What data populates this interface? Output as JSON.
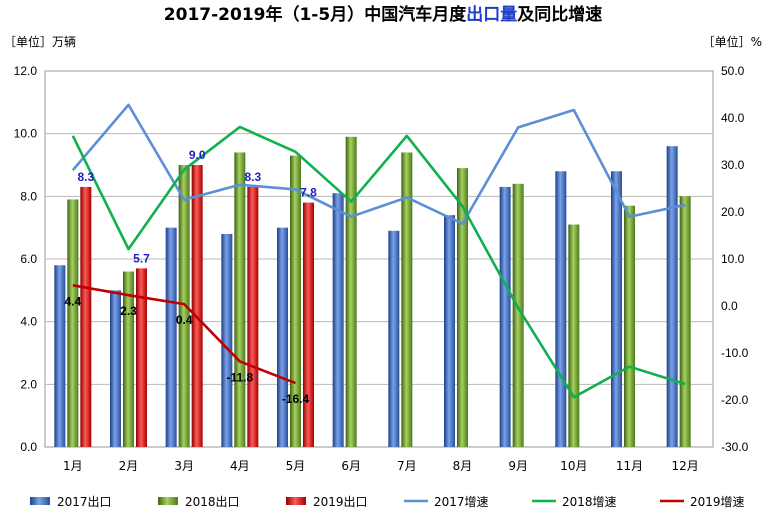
{
  "chart_data": {
    "type": "bar",
    "title": {
      "prefix": "2017-2019年（1-5月）中国汽车月度",
      "highlight": "出口量",
      "suffix": "及同比增速"
    },
    "left_unit": "［单位］万辆",
    "right_unit": "［单位］%",
    "categories": [
      "1月",
      "2月",
      "3月",
      "4月",
      "5月",
      "6月",
      "7月",
      "8月",
      "9月",
      "10月",
      "11月",
      "12月"
    ],
    "ylim_left": [
      0,
      12
    ],
    "ylim_right": [
      -30,
      50
    ],
    "left_ticks": [
      "0.0",
      "2.0",
      "4.0",
      "6.0",
      "8.0",
      "10.0",
      "12.0"
    ],
    "right_ticks": [
      "-30.0",
      "-20.0",
      "-10.0",
      "0.0",
      "10.0",
      "20.0",
      "30.0",
      "40.0",
      "50.0"
    ],
    "grid": true,
    "legend_position": "bottom",
    "bar_series": [
      {
        "name": "2017出口",
        "color": "#4472c4",
        "values": [
          5.8,
          5.0,
          7.0,
          6.8,
          7.0,
          8.1,
          6.9,
          7.4,
          8.3,
          8.8,
          8.8,
          9.6
        ]
      },
      {
        "name": "2018出口",
        "color": "#70a030",
        "values": [
          7.9,
          5.6,
          9.0,
          9.4,
          9.3,
          9.9,
          9.4,
          8.9,
          8.4,
          7.1,
          7.7,
          8.0
        ]
      },
      {
        "name": "2019出口",
        "color": "#e02020",
        "values": [
          8.3,
          5.7,
          9.0,
          8.3,
          7.8
        ]
      }
    ],
    "line_series": [
      {
        "name": "2017增速",
        "color": "#5b8fd6",
        "values": [
          28.9,
          42.8,
          22.6,
          25.8,
          24.8,
          19.0,
          23.1,
          17.5,
          38.0,
          41.7,
          19.0,
          21.5
        ]
      },
      {
        "name": "2018增速",
        "color": "#10b050",
        "values": [
          36.2,
          12.1,
          29.0,
          38.1,
          32.8,
          22.2,
          36.2,
          21.2,
          -0.4,
          -19.4,
          -12.9,
          -16.6
        ]
      },
      {
        "name": "2019增速",
        "color": "#c00000",
        "values": [
          4.4,
          2.3,
          0.4,
          -11.8,
          -16.4
        ]
      }
    ],
    "data_labels_2019_export": [
      "8.3",
      "5.7",
      "9.0",
      "8.3",
      "7.8"
    ],
    "data_labels_2019_growth": [
      "4.4",
      "2.3",
      "0.4",
      "-11.8",
      "-16.4"
    ]
  }
}
